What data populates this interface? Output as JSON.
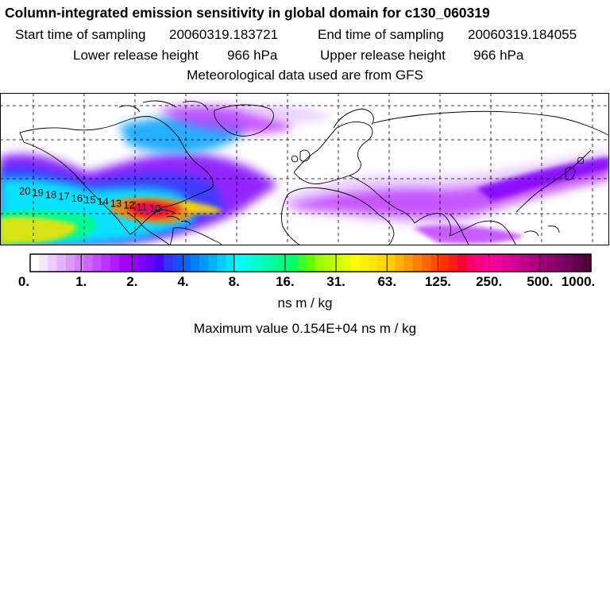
{
  "header": {
    "title": "Column-integrated emission sensitivity in global domain for c130_060319",
    "start_label": "Start time of sampling",
    "start_value": "20060319.183721",
    "end_label": "End time of sampling",
    "end_value": "20060319.184055",
    "lower_label": "Lower release height",
    "lower_value": "966 hPa",
    "upper_label": "Upper release height",
    "upper_value": "966 hPa",
    "met_note": "Meteorological data used are from GFS"
  },
  "map": {
    "track_labels": [
      "20",
      "19",
      "18",
      "17",
      "16",
      "15",
      "14",
      "13",
      "12",
      "11",
      "10"
    ],
    "plume_colors": [
      "#ffffff",
      "#e8c8ff",
      "#c040ff",
      "#8000ff",
      "#3040ff",
      "#00a0ff",
      "#00ffff",
      "#00ff80",
      "#c0ff00",
      "#ffe000",
      "#ff8000",
      "#ff1010",
      "#e00080",
      "#800060"
    ]
  },
  "colorbar": {
    "tick_labels": [
      "0.",
      "1.",
      "2.",
      "4.",
      "8.",
      "16.",
      "31.",
      "63.",
      "125.",
      "250.",
      "500.",
      "1000."
    ],
    "colors": [
      "#ffffff",
      "#f7e6ff",
      "#efccff",
      "#e6b3ff",
      "#dd99ff",
      "#d580ff",
      "#cc66ff",
      "#c44dff",
      "#bb33ff",
      "#b31aff",
      "#a600ff",
      "#9900ff",
      "#8000ff",
      "#6600ff",
      "#4d00ff",
      "#3333ff",
      "#1a4dff",
      "#0066ff",
      "#0080ff",
      "#0099ff",
      "#00b3ff",
      "#00ccff",
      "#00e6ff",
      "#00ffff",
      "#00ffe6",
      "#00ffcc",
      "#00ffb3",
      "#00ff99",
      "#00ff80",
      "#00ff66",
      "#33ff33",
      "#66ff00",
      "#99ff00",
      "#b3ff00",
      "#ccff00",
      "#e6ff00",
      "#ffff00",
      "#fff200",
      "#ffe600",
      "#ffd900",
      "#ffcc00",
      "#ffb300",
      "#ff9900",
      "#ff8000",
      "#ff6600",
      "#ff4d00",
      "#ff3300",
      "#ff1a1a",
      "#ff0033",
      "#ff0066",
      "#ff0080",
      "#ff0099",
      "#f00099",
      "#e00099",
      "#d00090",
      "#c00088",
      "#b00080",
      "#a00078",
      "#900070",
      "#800066",
      "#700058",
      "#600048",
      "#500038"
    ],
    "unit": "ns m / kg"
  },
  "max_line": "Maximum value  0.154E+04 ns m / kg"
}
